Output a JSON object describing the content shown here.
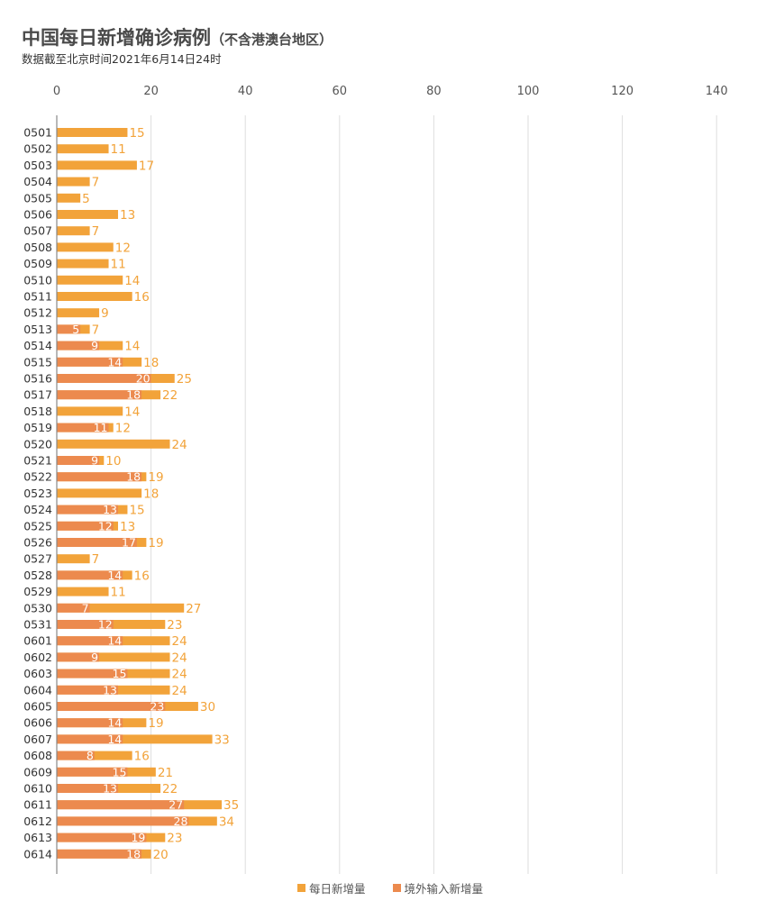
{
  "header": {
    "title": "中国每日新增确诊病例",
    "title_note": "（不含港澳台地区）",
    "subtitle": "数据截至北京时间2021年6月14日24时"
  },
  "colors": {
    "total": "#f2a33a",
    "imported": "#ec8a4e",
    "grid": "#dedede",
    "axis": "#888888",
    "label_total": "#f2a33a",
    "label_imported": "#ffffff"
  },
  "legend": {
    "total_label": "每日新增量",
    "imported_label": "境外输入新增量"
  },
  "chart_data": {
    "type": "bar",
    "orientation": "horizontal",
    "x_ticks": [
      0,
      20,
      40,
      60,
      80,
      100,
      120,
      140
    ],
    "xlim": [
      0,
      150
    ],
    "grid": true,
    "categories": [
      "0501",
      "0502",
      "0503",
      "0504",
      "0505",
      "0506",
      "0507",
      "0508",
      "0509",
      "0510",
      "0511",
      "0512",
      "0513",
      "0514",
      "0515",
      "0516",
      "0517",
      "0518",
      "0519",
      "0520",
      "0521",
      "0522",
      "0523",
      "0524",
      "0525",
      "0526",
      "0527",
      "0528",
      "0529",
      "0530",
      "0531",
      "0601",
      "0602",
      "0603",
      "0604",
      "0605",
      "0606",
      "0607",
      "0608",
      "0609",
      "0610",
      "0611",
      "0612",
      "0613",
      "0614"
    ],
    "series": [
      {
        "name": "每日新增量",
        "values": [
          15,
          11,
          17,
          7,
          5,
          13,
          7,
          12,
          11,
          14,
          16,
          9,
          7,
          14,
          18,
          25,
          22,
          14,
          12,
          24,
          10,
          19,
          18,
          15,
          13,
          19,
          7,
          16,
          11,
          27,
          23,
          24,
          24,
          24,
          24,
          30,
          19,
          33,
          16,
          21,
          22,
          35,
          34,
          23,
          20
        ]
      },
      {
        "name": "境外输入新增量",
        "values": [
          null,
          null,
          null,
          null,
          null,
          null,
          null,
          null,
          null,
          null,
          null,
          null,
          5,
          9,
          14,
          20,
          18,
          null,
          11,
          null,
          9,
          18,
          null,
          13,
          12,
          17,
          null,
          14,
          null,
          7,
          12,
          14,
          9,
          15,
          13,
          23,
          14,
          14,
          8,
          15,
          13,
          27,
          28,
          19,
          18
        ]
      }
    ]
  }
}
